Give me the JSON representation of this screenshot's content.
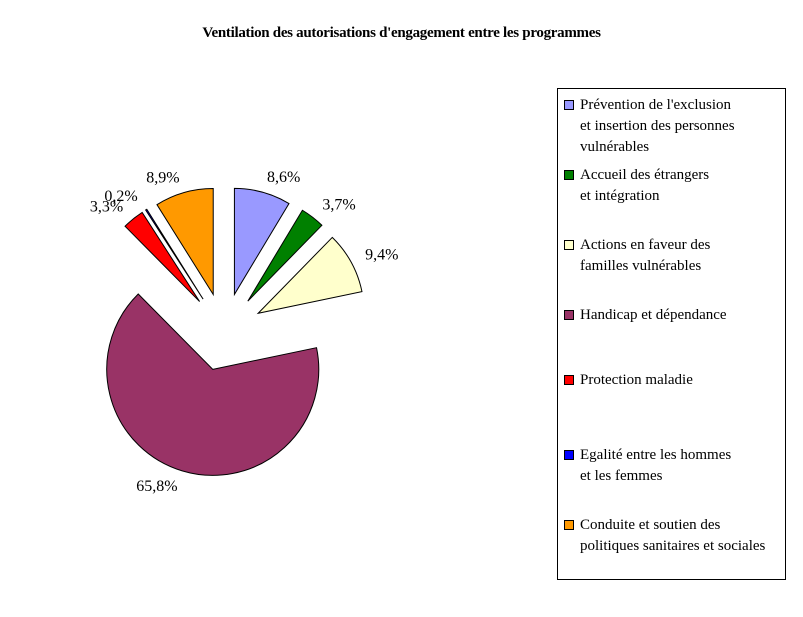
{
  "chart_data": {
    "type": "pie",
    "title": "Ventilation des autorisations d'engagement entre les programmes",
    "start_angle": "12 o'clock, clockwise",
    "exploded": true,
    "legend_position": "right",
    "slices": [
      {
        "name": "Prévention de l'exclusion\net insertion des personnes\nvulnérables",
        "value": 8.6,
        "label": "8,6%",
        "color": "#9999ff"
      },
      {
        "name": "Accueil des étrangers\net intégration",
        "value": 3.7,
        "label": "3,7%",
        "color": "#008000"
      },
      {
        "name": "Actions en faveur des\nfamilles vulnérables",
        "value": 9.4,
        "label": "9,4%",
        "color": "#ffffcc"
      },
      {
        "name": "Handicap et dépendance",
        "value": 65.8,
        "label": "65,8%",
        "color": "#993366"
      },
      {
        "name": "Protection maladie",
        "value": 3.3,
        "label": "3,3%",
        "color": "#ff0000"
      },
      {
        "name": "Egalité entre les hommes\net les femmes",
        "value": 0.2,
        "label": "0,2%",
        "color": "#0000ff"
      },
      {
        "name": "Conduite et soutien des\npolitiques sanitaires et sociales",
        "value": 8.9,
        "label": "8,9%",
        "color": "#ff9900"
      }
    ]
  }
}
